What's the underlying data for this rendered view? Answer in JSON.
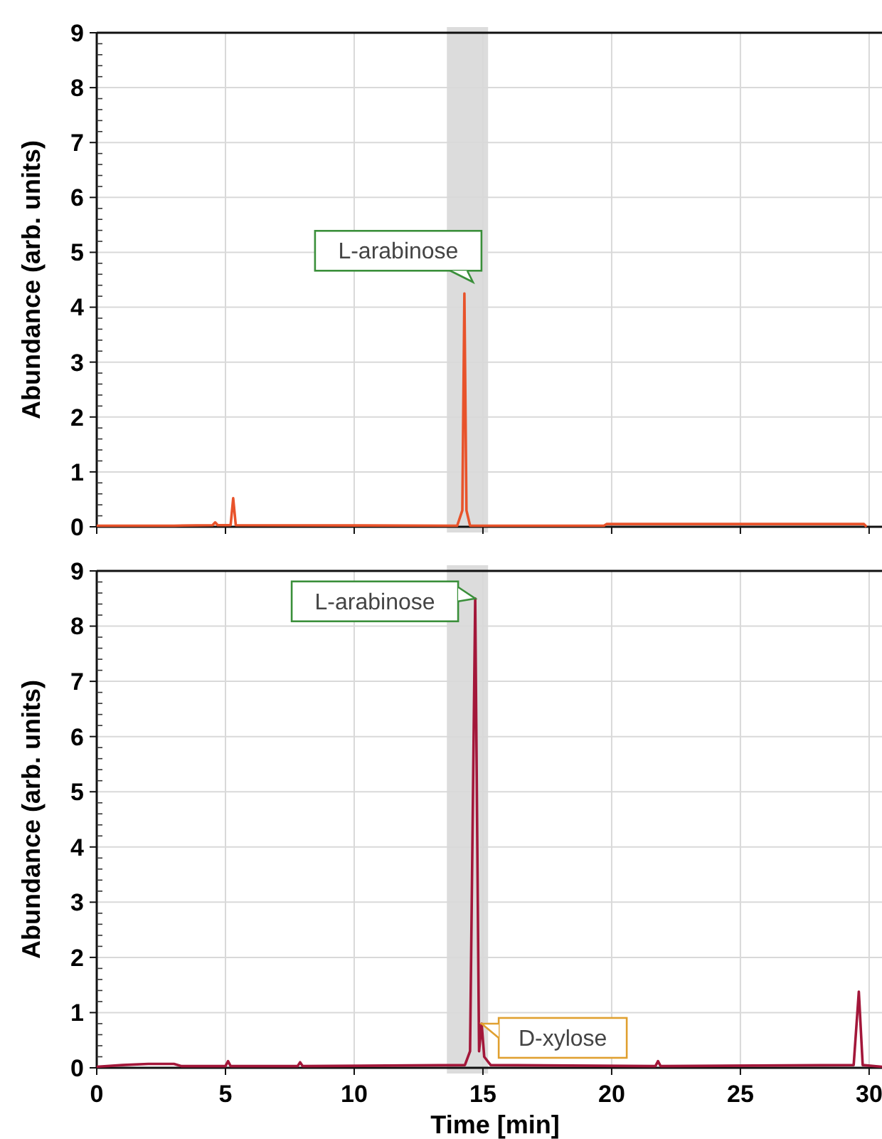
{
  "chart_data": [
    {
      "type": "line",
      "ylabel": "Abundance (arb. units)",
      "xlim": [
        0,
        30.5
      ],
      "xticks": [
        0,
        5,
        10,
        15,
        20,
        25,
        30
      ],
      "ylim": [
        0,
        9
      ],
      "yticks": [
        0,
        1,
        2,
        3,
        4,
        5,
        6,
        7,
        8,
        9
      ],
      "grid": true,
      "tick_labels": "y",
      "bands": [
        {
          "axis": "x",
          "from": 13.6,
          "to": 15.2,
          "color": "#dcdcdc"
        }
      ],
      "annotations": [
        {
          "text": "L-arabinose",
          "x": 14.28,
          "y": 4.25
        }
      ],
      "series": [
        {
          "color": "#e8532b",
          "x": [
            0,
            3,
            4.5,
            4.6,
            4.7,
            5.2,
            5.3,
            5.4,
            14.0,
            14.2,
            14.28,
            14.36,
            14.5,
            19.7,
            19.8,
            29.8,
            29.9
          ],
          "values": [
            0.02,
            0.02,
            0.03,
            0.08,
            0.03,
            0.03,
            0.52,
            0.03,
            0.02,
            0.3,
            4.25,
            0.3,
            0.02,
            0.02,
            0.05,
            0.05,
            0.0
          ]
        }
      ]
    },
    {
      "type": "line",
      "ylabel": "Abundance (arb. units)",
      "xlabel": "Time [min]",
      "xlim": [
        0,
        30.5
      ],
      "xticks": [
        0,
        5,
        10,
        15,
        20,
        25,
        30
      ],
      "ylim": [
        0,
        9
      ],
      "yticks": [
        0,
        1,
        2,
        3,
        4,
        5,
        6,
        7,
        8,
        9
      ],
      "grid": true,
      "bands": [
        {
          "axis": "x",
          "from": 13.6,
          "to": 15.2,
          "color": "#dcdcdc"
        }
      ],
      "annotations": [
        {
          "text": "L-arabinose",
          "x": 14.7,
          "y": 8.5
        },
        {
          "text": "D-xylose",
          "x": 14.95,
          "y": 0.8
        }
      ],
      "series": [
        {
          "color": "#a3173a",
          "x": [
            0,
            1,
            2,
            3,
            3.3,
            5.0,
            5.1,
            5.2,
            7.8,
            7.9,
            8.0,
            14.3,
            14.5,
            14.7,
            14.85,
            14.95,
            15.05,
            15.3,
            21.7,
            21.8,
            21.9,
            29.4,
            29.6,
            29.75,
            30.5
          ],
          "values": [
            0.02,
            0.05,
            0.07,
            0.07,
            0.03,
            0.03,
            0.12,
            0.03,
            0.03,
            0.1,
            0.03,
            0.05,
            0.3,
            8.5,
            0.3,
            0.8,
            0.2,
            0.05,
            0.03,
            0.12,
            0.03,
            0.05,
            1.38,
            0.05,
            0.02
          ]
        }
      ]
    }
  ]
}
